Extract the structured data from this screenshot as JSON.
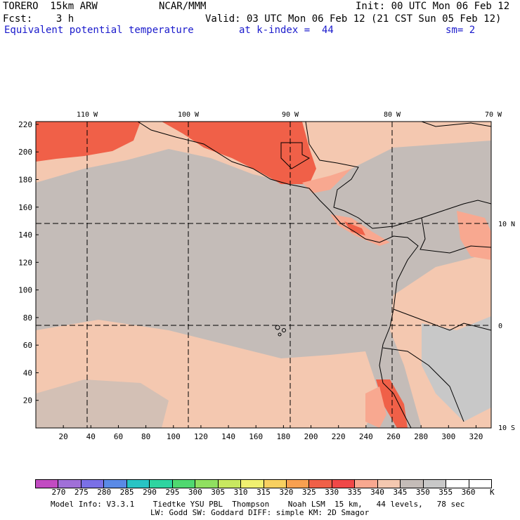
{
  "header": {
    "model": "TORERO  15km ARW",
    "org": "NCAR/MMM",
    "init": "Init: 00 UTC Mon 06 Feb 12",
    "fcst": "Fcst:    3 h",
    "valid": "Valid: 03 UTC Mon 06 Feb 12 (21 CST Sun 05 Feb 12)",
    "field": "Equivalent potential temperature",
    "level": "at k-index =  44",
    "smooth": "sm= 2"
  },
  "map": {
    "lon_labels": [
      "110 W",
      "100 W",
      "90 W",
      "80 W",
      "70 W"
    ],
    "lat_labels": [
      "10 N",
      "0",
      "10 S"
    ],
    "y_ticks": [
      "220",
      "200",
      "180",
      "160",
      "140",
      "120",
      "100",
      "80",
      "60",
      "40",
      "20"
    ],
    "x_ticks": [
      "20",
      "40",
      "60",
      "80",
      "100",
      "120",
      "140",
      "160",
      "180",
      "200",
      "220",
      "240",
      "260",
      "280",
      "300",
      "320"
    ]
  },
  "colorbar": {
    "levels": [
      "270",
      "275",
      "280",
      "285",
      "290",
      "295",
      "300",
      "305",
      "310",
      "315",
      "320",
      "325",
      "330",
      "335",
      "340",
      "345",
      "350",
      "355",
      "360"
    ],
    "unit": "K",
    "colors": [
      "#c24bc2",
      "#a070d8",
      "#7a70e6",
      "#5a8ae6",
      "#28c4c4",
      "#2ed4a0",
      "#50d870",
      "#90e060",
      "#c8e860",
      "#f0f070",
      "#f8d060",
      "#f8a050",
      "#f06048",
      "#f04848",
      "#f8a890",
      "#f4c8b0",
      "#c4bcb8",
      "#c8c8c8",
      "#ffffff",
      "#ffffff"
    ]
  },
  "footer": {
    "line1": "Model Info: V3.3.1    Tiedtke YSU PBL  Thompson    Noah LSM  15 km,   44 levels,   78 sec",
    "line2": "LW: Godd SW: Goddard DIFF: simple KM: 2D Smagor"
  }
}
